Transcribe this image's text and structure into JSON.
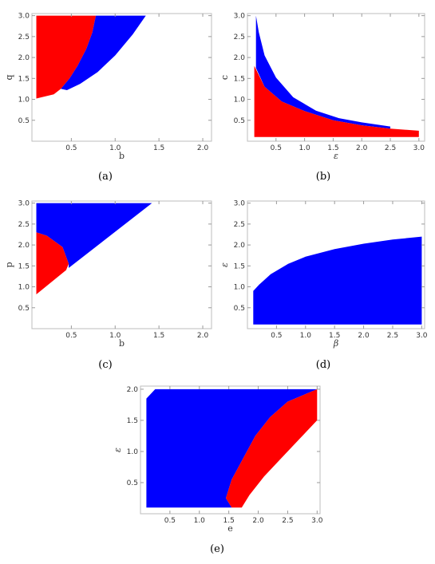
{
  "colors": {
    "red": "#ff0000",
    "blue": "#0000ff",
    "frame": "#bdbdbd",
    "tick": "#9a9a9a"
  },
  "chart_data": [
    {
      "id": "a",
      "caption": "(a)",
      "type": "area",
      "xlabel": "b",
      "ylabel": "q",
      "xlim": [
        0.05,
        2.1
      ],
      "ylim": [
        0,
        3.05
      ],
      "xticks": [
        0.5,
        1.0,
        1.5,
        2.0
      ],
      "xtick_labels": [
        "0.5",
        "1.0",
        "1.5",
        "2.0"
      ],
      "yticks": [
        0.5,
        1.0,
        1.5,
        2.0,
        2.5,
        3.0
      ],
      "ytick_labels": [
        "0.5",
        "1.0",
        "1.5",
        "2.0",
        "2.5",
        "3.0"
      ],
      "grid": false,
      "series": [
        {
          "color": "red",
          "polygon": [
            [
              0.1,
              3.0
            ],
            [
              0.78,
              3.0
            ],
            [
              0.74,
              2.6
            ],
            [
              0.67,
              2.2
            ],
            [
              0.57,
              1.8
            ],
            [
              0.48,
              1.5
            ],
            [
              0.38,
              1.25
            ],
            [
              0.3,
              1.12
            ],
            [
              0.1,
              1.02
            ]
          ]
        },
        {
          "color": "blue",
          "polygon": [
            [
              0.78,
              3.0
            ],
            [
              1.35,
              3.0
            ],
            [
              1.2,
              2.55
            ],
            [
              1.0,
              2.05
            ],
            [
              0.8,
              1.65
            ],
            [
              0.6,
              1.37
            ],
            [
              0.45,
              1.22
            ],
            [
              0.38,
              1.25
            ],
            [
              0.48,
              1.5
            ],
            [
              0.57,
              1.8
            ],
            [
              0.67,
              2.2
            ],
            [
              0.74,
              2.6
            ]
          ]
        }
      ]
    },
    {
      "id": "b",
      "caption": "(b)",
      "type": "area",
      "xlabel": "ε",
      "ylabel": "c",
      "xlim": [
        0.0,
        3.1
      ],
      "ylim": [
        0,
        3.05
      ],
      "xticks": [
        0.5,
        1.0,
        1.5,
        2.0,
        2.5,
        3.0
      ],
      "xtick_labels": [
        "0.5",
        "1.0",
        "1.5",
        "2.0",
        "2.5",
        "3.0"
      ],
      "yticks": [
        0.5,
        1.0,
        1.5,
        2.0,
        2.5,
        3.0
      ],
      "ytick_labels": [
        "0.5",
        "1.0",
        "1.5",
        "2.0",
        "2.5",
        "3.0"
      ],
      "grid": false,
      "series": [
        {
          "color": "blue",
          "polygon": [
            [
              0.15,
              3.0
            ],
            [
              0.2,
              2.6
            ],
            [
              0.3,
              2.05
            ],
            [
              0.5,
              1.52
            ],
            [
              0.8,
              1.05
            ],
            [
              1.2,
              0.73
            ],
            [
              1.6,
              0.55
            ],
            [
              2.0,
              0.45
            ],
            [
              2.5,
              0.35
            ],
            [
              2.5,
              0.3
            ],
            [
              2.0,
              0.38
            ],
            [
              1.5,
              0.5
            ],
            [
              1.0,
              0.72
            ],
            [
              0.6,
              0.95
            ],
            [
              0.3,
              1.3
            ],
            [
              0.15,
              1.75
            ]
          ]
        },
        {
          "color": "red",
          "polygon": [
            [
              0.12,
              1.8
            ],
            [
              0.3,
              1.3
            ],
            [
              0.6,
              0.95
            ],
            [
              1.0,
              0.72
            ],
            [
              1.5,
              0.5
            ],
            [
              2.0,
              0.38
            ],
            [
              2.5,
              0.3
            ],
            [
              3.0,
              0.25
            ],
            [
              3.0,
              0.1
            ],
            [
              0.12,
              0.1
            ]
          ]
        }
      ]
    },
    {
      "id": "c",
      "caption": "(c)",
      "type": "area",
      "xlabel": "b",
      "ylabel": "p",
      "xlim": [
        0.05,
        2.1
      ],
      "ylim": [
        0,
        3.05
      ],
      "xticks": [
        0.5,
        1.0,
        1.5,
        2.0
      ],
      "xtick_labels": [
        "0.5",
        "1.0",
        "1.5",
        "2.0"
      ],
      "yticks": [
        0.5,
        1.0,
        1.5,
        2.0,
        2.5,
        3.0
      ],
      "ytick_labels": [
        "0.5",
        "1.0",
        "1.5",
        "2.0",
        "2.5",
        "3.0"
      ],
      "grid": false,
      "series": [
        {
          "color": "blue",
          "polygon": [
            [
              0.1,
              3.0
            ],
            [
              1.42,
              3.0
            ],
            [
              0.47,
              1.45
            ],
            [
              0.47,
              1.55
            ],
            [
              0.4,
              1.95
            ],
            [
              0.22,
              2.22
            ],
            [
              0.1,
              2.3
            ]
          ]
        },
        {
          "color": "red",
          "polygon": [
            [
              0.1,
              2.3
            ],
            [
              0.22,
              2.22
            ],
            [
              0.4,
              1.95
            ],
            [
              0.47,
              1.55
            ],
            [
              0.44,
              1.4
            ],
            [
              0.1,
              0.82
            ]
          ]
        }
      ]
    },
    {
      "id": "d",
      "caption": "(d)",
      "type": "area",
      "xlabel": "β",
      "ylabel": "ε",
      "xlim": [
        0.0,
        3.05
      ],
      "ylim": [
        0,
        3.05
      ],
      "xticks": [
        0.5,
        1.0,
        1.5,
        2.0,
        2.5,
        3.0
      ],
      "xtick_labels": [
        "0.5",
        "1.0",
        "1.5",
        "2.0",
        "2.5",
        "3.0"
      ],
      "yticks": [
        0.5,
        1.0,
        1.5,
        2.0,
        2.5,
        3.0
      ],
      "ytick_labels": [
        "0.5",
        "1.0",
        "1.5",
        "2.0",
        "2.5",
        "3.0"
      ],
      "grid": false,
      "series": [
        {
          "color": "blue",
          "polygon": [
            [
              0.1,
              0.9
            ],
            [
              0.2,
              1.05
            ],
            [
              0.4,
              1.3
            ],
            [
              0.7,
              1.55
            ],
            [
              1.0,
              1.72
            ],
            [
              1.5,
              1.9
            ],
            [
              2.0,
              2.03
            ],
            [
              2.5,
              2.13
            ],
            [
              3.0,
              2.2
            ],
            [
              3.0,
              0.1
            ],
            [
              0.1,
              0.1
            ]
          ]
        }
      ]
    },
    {
      "id": "e",
      "caption": "(e)",
      "type": "area",
      "xlabel": "e",
      "ylabel": "ε",
      "xlim": [
        0.0,
        3.05
      ],
      "ylim": [
        0,
        2.05
      ],
      "xticks": [
        0.5,
        1.0,
        1.5,
        2.0,
        2.5,
        3.0
      ],
      "xtick_labels": [
        "0.5",
        "1.0",
        "1.5",
        "2.0",
        "2.5",
        "3.0"
      ],
      "yticks": [
        0.5,
        1.0,
        1.5,
        2.0
      ],
      "ytick_labels": [
        "0.5",
        "1.0",
        "1.5",
        "2.0"
      ],
      "grid": false,
      "series": [
        {
          "color": "blue",
          "polygon": [
            [
              0.1,
              1.85
            ],
            [
              0.25,
              2.0
            ],
            [
              3.0,
              2.0
            ],
            [
              2.5,
              1.8
            ],
            [
              2.2,
              1.55
            ],
            [
              1.95,
              1.25
            ],
            [
              1.75,
              0.9
            ],
            [
              1.55,
              0.55
            ],
            [
              1.45,
              0.25
            ],
            [
              1.55,
              0.1
            ],
            [
              0.1,
              0.1
            ]
          ]
        },
        {
          "color": "red",
          "polygon": [
            [
              1.55,
              0.1
            ],
            [
              1.45,
              0.25
            ],
            [
              1.55,
              0.55
            ],
            [
              1.75,
              0.9
            ],
            [
              1.95,
              1.25
            ],
            [
              2.2,
              1.55
            ],
            [
              2.5,
              1.8
            ],
            [
              3.0,
              2.0
            ],
            [
              3.0,
              1.5
            ],
            [
              2.7,
              1.2
            ],
            [
              2.4,
              0.9
            ],
            [
              2.1,
              0.6
            ],
            [
              1.85,
              0.3
            ],
            [
              1.72,
              0.1
            ]
          ]
        }
      ]
    }
  ]
}
